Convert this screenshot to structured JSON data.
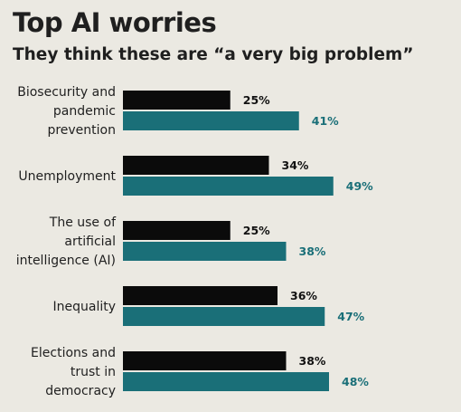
{
  "title": "Top AI worries",
  "subtitle": "They think these are “a very big problem”",
  "colors": {
    "background": "#ebe9e2",
    "series_1": "#0b0b0b",
    "series_2": "#1a6f78",
    "series_2_label": "#1a6f78",
    "text": "#1f1f1f"
  },
  "chart_data": {
    "type": "bar",
    "orientation": "horizontal",
    "title": "Top AI worries",
    "subtitle": "They think these are “a very big problem”",
    "categories": [
      [
        "Biosecurity and",
        "pandemic",
        "prevention"
      ],
      [
        "Unemployment"
      ],
      [
        "The use of",
        "artificial",
        "intelligence (AI)"
      ],
      [
        "Inequality"
      ],
      [
        "Elections and",
        "trust in",
        "democracy"
      ]
    ],
    "series": [
      {
        "values": [
          25,
          34,
          25,
          36,
          38
        ],
        "labels": [
          "25%",
          "34%",
          "25%",
          "36%",
          "38%"
        ]
      },
      {
        "values": [
          41,
          49,
          38,
          47,
          48
        ],
        "labels": [
          "41%",
          "49%",
          "38%",
          "47%",
          "48%"
        ]
      }
    ],
    "xlim": [
      0,
      50
    ],
    "grid": false,
    "legend": false
  }
}
